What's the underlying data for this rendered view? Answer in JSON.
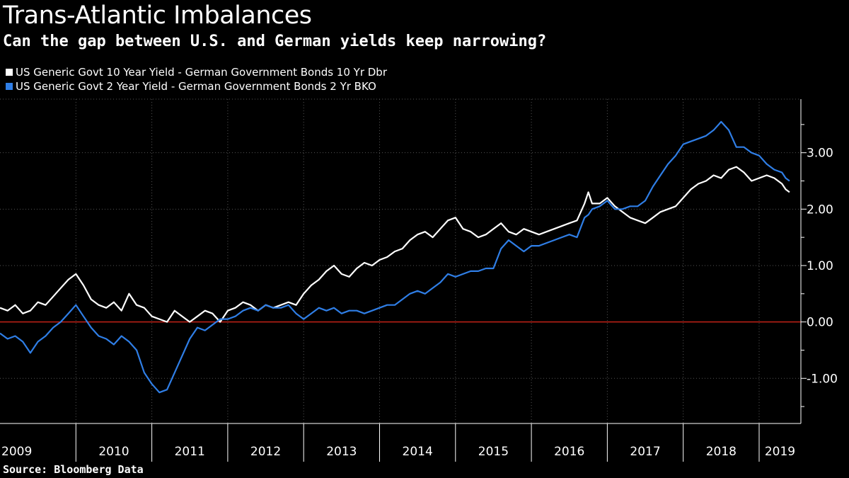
{
  "header": {
    "title": "Trans-Atlantic Imbalances",
    "subtitle": "Can the gap between U.S. and German yields keep narrowing?"
  },
  "footer": {
    "source": "Source: Bloomberg Data"
  },
  "colors": {
    "background": "#000000",
    "series_10y": "#ffffff",
    "series_2y": "#2f7ee6",
    "zero_line": "#e0261b",
    "grid": "#555555"
  },
  "chart_data": {
    "type": "line",
    "title": "Trans-Atlantic Imbalances",
    "subtitle": "Can the gap between U.S. and German yields keep narrowing?",
    "xlabel": "",
    "ylabel": "",
    "xlim": [
      2009.0,
      2019.55
    ],
    "ylim": [
      -1.8,
      3.95
    ],
    "yticks": [
      -1.0,
      0.0,
      1.0,
      2.0,
      3.0
    ],
    "ytick_labels": [
      "-1.00",
      "0.00",
      "1.00",
      "2.00",
      "3.00"
    ],
    "x_categories": [
      "2009",
      "2010",
      "2011",
      "2012",
      "2013",
      "2014",
      "2015",
      "2016",
      "2017",
      "2018",
      "2019"
    ],
    "legend_position": "top-left",
    "grid": true,
    "series": [
      {
        "name": "US Generic Govt 10 Year Yield - German Government Bonds 10 Yr Dbr",
        "color": "#ffffff",
        "x": [
          2009.0,
          2009.1,
          2009.2,
          2009.3,
          2009.4,
          2009.5,
          2009.6,
          2009.7,
          2009.8,
          2009.9,
          2010.0,
          2010.1,
          2010.2,
          2010.3,
          2010.4,
          2010.5,
          2010.6,
          2010.7,
          2010.8,
          2010.9,
          2011.0,
          2011.1,
          2011.2,
          2011.3,
          2011.4,
          2011.5,
          2011.6,
          2011.7,
          2011.8,
          2011.9,
          2012.0,
          2012.1,
          2012.2,
          2012.3,
          2012.4,
          2012.5,
          2012.6,
          2012.7,
          2012.8,
          2012.9,
          2013.0,
          2013.1,
          2013.2,
          2013.3,
          2013.4,
          2013.5,
          2013.6,
          2013.7,
          2013.8,
          2013.9,
          2014.0,
          2014.1,
          2014.2,
          2014.3,
          2014.4,
          2014.5,
          2014.6,
          2014.7,
          2014.8,
          2014.9,
          2015.0,
          2015.1,
          2015.2,
          2015.3,
          2015.4,
          2015.5,
          2015.6,
          2015.7,
          2015.8,
          2015.9,
          2016.0,
          2016.1,
          2016.2,
          2016.3,
          2016.4,
          2016.5,
          2016.6,
          2016.7,
          2016.75,
          2016.8,
          2016.9,
          2017.0,
          2017.1,
          2017.2,
          2017.3,
          2017.4,
          2017.5,
          2017.6,
          2017.7,
          2017.8,
          2017.9,
          2018.0,
          2018.1,
          2018.2,
          2018.3,
          2018.4,
          2018.5,
          2018.6,
          2018.7,
          2018.8,
          2018.9,
          2019.0,
          2019.1,
          2019.2,
          2019.3,
          2019.35,
          2019.4
        ],
        "values": [
          0.25,
          0.2,
          0.3,
          0.15,
          0.2,
          0.35,
          0.3,
          0.45,
          0.6,
          0.75,
          0.85,
          0.65,
          0.4,
          0.3,
          0.25,
          0.35,
          0.2,
          0.5,
          0.3,
          0.25,
          0.1,
          0.05,
          0.0,
          0.2,
          0.1,
          0.0,
          0.1,
          0.2,
          0.15,
          0.0,
          0.2,
          0.25,
          0.35,
          0.3,
          0.2,
          0.3,
          0.25,
          0.3,
          0.35,
          0.3,
          0.5,
          0.65,
          0.75,
          0.9,
          1.0,
          0.85,
          0.8,
          0.95,
          1.05,
          1.0,
          1.1,
          1.15,
          1.25,
          1.3,
          1.45,
          1.55,
          1.6,
          1.5,
          1.65,
          1.8,
          1.85,
          1.65,
          1.6,
          1.5,
          1.55,
          1.65,
          1.75,
          1.6,
          1.55,
          1.65,
          1.6,
          1.55,
          1.6,
          1.65,
          1.7,
          1.75,
          1.8,
          2.1,
          2.3,
          2.1,
          2.1,
          2.2,
          2.05,
          1.95,
          1.85,
          1.8,
          1.75,
          1.85,
          1.95,
          2.0,
          2.05,
          2.2,
          2.35,
          2.45,
          2.5,
          2.6,
          2.55,
          2.7,
          2.75,
          2.65,
          2.5,
          2.55,
          2.6,
          2.55,
          2.45,
          2.35,
          2.3
        ]
      },
      {
        "name": "US Generic Govt 2 Year Yield - German Government Bonds 2 Yr BKO",
        "color": "#2f7ee6",
        "x": [
          2009.0,
          2009.1,
          2009.2,
          2009.3,
          2009.4,
          2009.5,
          2009.6,
          2009.7,
          2009.8,
          2009.9,
          2010.0,
          2010.1,
          2010.2,
          2010.3,
          2010.4,
          2010.5,
          2010.6,
          2010.7,
          2010.8,
          2010.9,
          2011.0,
          2011.1,
          2011.2,
          2011.3,
          2011.4,
          2011.5,
          2011.6,
          2011.7,
          2011.8,
          2011.9,
          2012.0,
          2012.1,
          2012.2,
          2012.3,
          2012.4,
          2012.5,
          2012.6,
          2012.7,
          2012.8,
          2012.9,
          2013.0,
          2013.1,
          2013.2,
          2013.3,
          2013.4,
          2013.5,
          2013.6,
          2013.7,
          2013.8,
          2013.9,
          2014.0,
          2014.1,
          2014.2,
          2014.3,
          2014.4,
          2014.5,
          2014.6,
          2014.7,
          2014.8,
          2014.9,
          2015.0,
          2015.1,
          2015.2,
          2015.3,
          2015.4,
          2015.5,
          2015.6,
          2015.7,
          2015.8,
          2015.9,
          2016.0,
          2016.1,
          2016.2,
          2016.3,
          2016.4,
          2016.5,
          2016.6,
          2016.7,
          2016.75,
          2016.8,
          2016.9,
          2017.0,
          2017.1,
          2017.2,
          2017.3,
          2017.4,
          2017.5,
          2017.6,
          2017.7,
          2017.8,
          2017.9,
          2018.0,
          2018.1,
          2018.2,
          2018.3,
          2018.4,
          2018.5,
          2018.6,
          2018.7,
          2018.8,
          2018.9,
          2019.0,
          2019.1,
          2019.2,
          2019.3,
          2019.35,
          2019.4
        ],
        "values": [
          -0.2,
          -0.3,
          -0.25,
          -0.35,
          -0.55,
          -0.35,
          -0.25,
          -0.1,
          0.0,
          0.15,
          0.3,
          0.1,
          -0.1,
          -0.25,
          -0.3,
          -0.4,
          -0.25,
          -0.35,
          -0.5,
          -0.9,
          -1.1,
          -1.25,
          -1.2,
          -0.9,
          -0.6,
          -0.3,
          -0.1,
          -0.15,
          -0.05,
          0.05,
          0.05,
          0.1,
          0.2,
          0.25,
          0.2,
          0.3,
          0.25,
          0.25,
          0.3,
          0.15,
          0.05,
          0.15,
          0.25,
          0.2,
          0.25,
          0.15,
          0.2,
          0.2,
          0.15,
          0.2,
          0.25,
          0.3,
          0.3,
          0.4,
          0.5,
          0.55,
          0.5,
          0.6,
          0.7,
          0.85,
          0.8,
          0.85,
          0.9,
          0.9,
          0.95,
          0.95,
          1.3,
          1.45,
          1.35,
          1.25,
          1.35,
          1.35,
          1.4,
          1.45,
          1.5,
          1.55,
          1.5,
          1.85,
          1.9,
          2.0,
          2.05,
          2.15,
          2.0,
          2.0,
          2.05,
          2.05,
          2.15,
          2.4,
          2.6,
          2.8,
          2.95,
          3.15,
          3.2,
          3.25,
          3.3,
          3.4,
          3.55,
          3.4,
          3.1,
          3.1,
          3.0,
          2.95,
          2.8,
          2.7,
          2.65,
          2.55,
          2.5
        ]
      }
    ]
  }
}
